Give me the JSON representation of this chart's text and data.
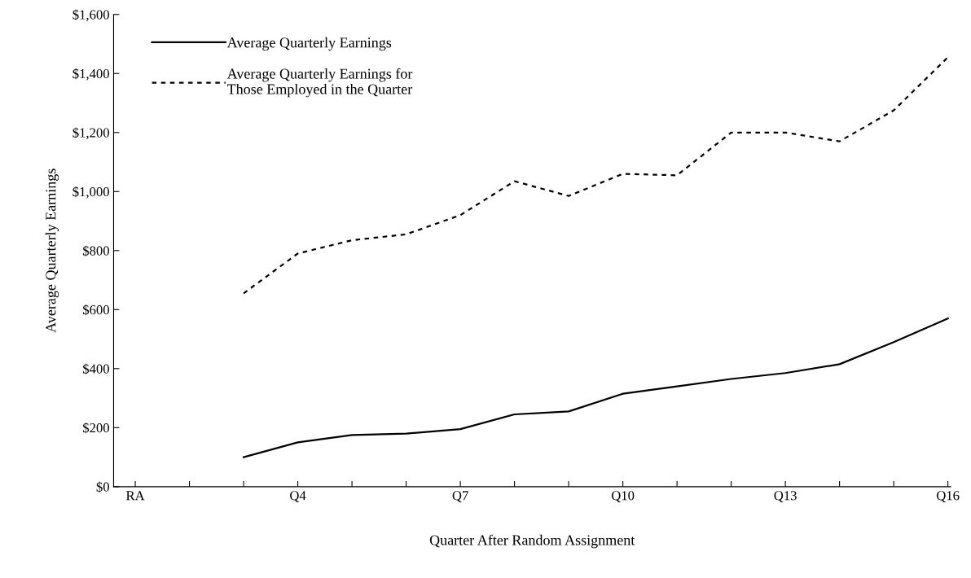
{
  "chart_data": {
    "type": "line",
    "xlabel": "Quarter After Random Assignment",
    "ylabel": "Average Quarterly Earnings",
    "categories": [
      "RA",
      null,
      null,
      "Q4",
      null,
      null,
      "Q7",
      null,
      null,
      "Q10",
      null,
      null,
      "Q13",
      null,
      null,
      "Q16"
    ],
    "ylim": [
      0,
      1600
    ],
    "yticks": [
      {
        "value": 0,
        "label": "$0"
      },
      {
        "value": 200,
        "label": "$200"
      },
      {
        "value": 400,
        "label": "$400"
      },
      {
        "value": 600,
        "label": "$600"
      },
      {
        "value": 800,
        "label": "$800"
      },
      {
        "value": 1000,
        "label": "$1,000"
      },
      {
        "value": 1200,
        "label": "$1,200"
      },
      {
        "value": 1400,
        "label": "$1,400"
      },
      {
        "value": 1600,
        "label": "$1,600"
      }
    ],
    "legend": "top left",
    "grid": false,
    "marker": "none",
    "series": [
      {
        "name": "Average Quarterly Earnings",
        "color": "#000000",
        "line_style": "solid",
        "values": [
          null,
          null,
          100,
          150,
          175,
          180,
          195,
          245,
          255,
          315,
          340,
          365,
          385,
          415,
          490,
          570
        ]
      },
      {
        "name": "Average Quarterly Earnings for\nThose Employed in the Quarter",
        "color": "#000000",
        "line_style": "dotted",
        "values": [
          null,
          null,
          655,
          790,
          835,
          855,
          920,
          1035,
          985,
          1060,
          1055,
          1200,
          1200,
          1170,
          1275,
          1455
        ]
      }
    ]
  }
}
